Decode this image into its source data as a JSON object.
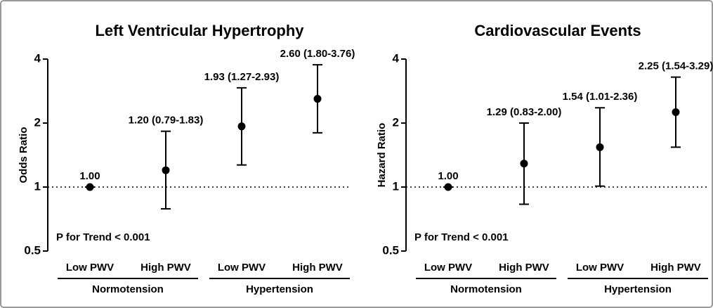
{
  "chart_data": [
    {
      "type": "errorbar",
      "title": "Left Ventricular Hypertrophy",
      "ylabel": "Odds Ratio",
      "groups": [
        {
          "name": "Normotension",
          "categories": [
            "Low PWV",
            "High PWV"
          ]
        },
        {
          "name": "Hypertension",
          "categories": [
            "Low PWV",
            "High PWV"
          ]
        }
      ],
      "values": [
        1.0,
        1.2,
        1.93,
        2.6
      ],
      "lower": [
        1.0,
        0.79,
        1.27,
        1.8
      ],
      "upper": [
        1.0,
        1.83,
        2.93,
        3.76
      ],
      "value_labels": [
        "1.00",
        "1.20 (0.79-1.83)",
        "1.93 (1.27-2.93)",
        "2.60 (1.80-3.76)"
      ],
      "annotation": "P for Trend < 0.001",
      "reference_line": 1,
      "log_scale": true,
      "ylim": [
        0.5,
        4
      ],
      "yticks": [
        0.5,
        1,
        2,
        4
      ],
      "color": "#000000"
    },
    {
      "type": "errorbar",
      "title": "Cardiovascular Events",
      "ylabel": "Hazard Ratio",
      "groups": [
        {
          "name": "Normotension",
          "categories": [
            "Low PWV",
            "High PWV"
          ]
        },
        {
          "name": "Hypertension",
          "categories": [
            "Low PWV",
            "High PWV"
          ]
        }
      ],
      "values": [
        1.0,
        1.29,
        1.54,
        2.25
      ],
      "lower": [
        1.0,
        0.83,
        1.01,
        1.54
      ],
      "upper": [
        1.0,
        2.0,
        2.36,
        3.29
      ],
      "value_labels": [
        "1.00",
        "1.29 (0.83-2.00)",
        "1.54 (1.01-2.36)",
        "2.25 (1.54-3.29)"
      ],
      "annotation": "P for Trend < 0.001",
      "reference_line": 1,
      "log_scale": true,
      "ylim": [
        0.5,
        4
      ],
      "yticks": [
        0.5,
        1,
        2,
        4
      ],
      "color": "#000000"
    }
  ]
}
